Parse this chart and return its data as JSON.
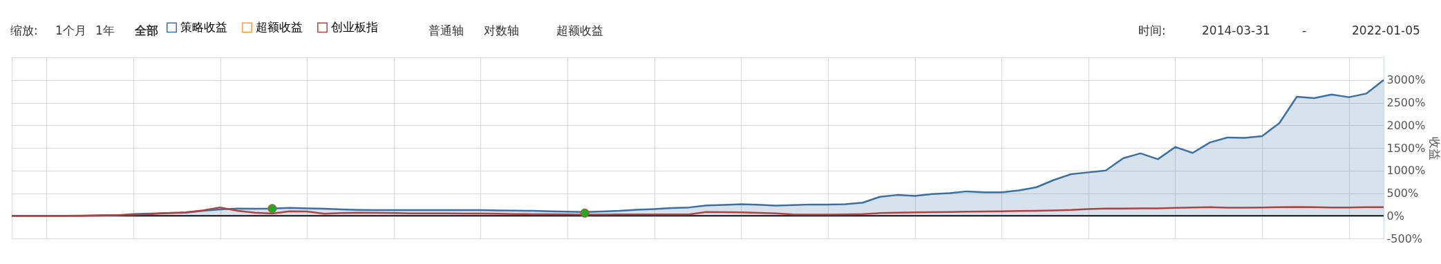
{
  "chart_data": {
    "type": "line",
    "categories": [
      null,
      null,
      null,
      null,
      null,
      null,
      null,
      null,
      null,
      null,
      null,
      null,
      null,
      null,
      null,
      null,
      null,
      null,
      null,
      null,
      null,
      null,
      null,
      null,
      null,
      null,
      null,
      null,
      null,
      null,
      null,
      null,
      null,
      null,
      null,
      null,
      null,
      null,
      null,
      null,
      null,
      null,
      null,
      null,
      null,
      null,
      null,
      null,
      null,
      null,
      null,
      null,
      null,
      null,
      null,
      null,
      null,
      null,
      null,
      null,
      null,
      null,
      null,
      null,
      null,
      null,
      null,
      null,
      null,
      null,
      null,
      null,
      null,
      null,
      null,
      null,
      null,
      null,
      null,
      null
    ],
    "series": [
      {
        "name": "策略收益",
        "type": "area",
        "color": "#3a6fa5",
        "values": [
          0,
          0,
          0,
          0,
          0,
          5,
          10,
          40,
          50,
          60,
          70,
          110,
          140,
          160,
          155,
          160,
          175,
          165,
          155,
          140,
          130,
          125,
          125,
          125,
          125,
          125,
          125,
          125,
          120,
          115,
          110,
          100,
          90,
          85,
          95,
          110,
          135,
          150,
          170,
          185,
          230,
          240,
          255,
          245,
          225,
          235,
          250,
          250,
          255,
          290,
          420,
          460,
          440,
          480,
          500,
          540,
          520,
          520,
          560,
          630,
          790,
          920,
          960,
          1000,
          1270,
          1380,
          1250,
          1520,
          1390,
          1620,
          1730,
          1720,
          1760,
          2050,
          2630,
          2600,
          2680,
          2620,
          2700,
          3000
        ]
      },
      {
        "name": "超额收益",
        "color": "#f79c45",
        "values": [
          null,
          null,
          null,
          null,
          null,
          null,
          null,
          null,
          null,
          null,
          null,
          null,
          null,
          null,
          null,
          null,
          null,
          null,
          null,
          null,
          null,
          null,
          null,
          null,
          null,
          null,
          null,
          null,
          null,
          null,
          null,
          null,
          null,
          null,
          null,
          null,
          null,
          null,
          null,
          null,
          null,
          null,
          null,
          null,
          null,
          null,
          null,
          null,
          null,
          null,
          null,
          null,
          null,
          null,
          null,
          null,
          null,
          null,
          null,
          null,
          null,
          null,
          null,
          null,
          null,
          null,
          null,
          null,
          null,
          null,
          null,
          null,
          null,
          null,
          null,
          null,
          null,
          null,
          null,
          null
        ]
      },
      {
        "name": "创业板指",
        "color": "#b0413e",
        "values": [
          0,
          0,
          0,
          0,
          5,
          10,
          15,
          20,
          40,
          60,
          75,
          120,
          185,
          110,
          70,
          50,
          100,
          95,
          45,
          60,
          70,
          65,
          60,
          55,
          55,
          55,
          50,
          50,
          45,
          40,
          35,
          35,
          30,
          25,
          25,
          30,
          30,
          30,
          30,
          30,
          85,
          80,
          75,
          65,
          55,
          30,
          25,
          25,
          30,
          40,
          60,
          70,
          75,
          80,
          85,
          90,
          95,
          100,
          105,
          110,
          120,
          130,
          150,
          160,
          160,
          165,
          165,
          175,
          185,
          190,
          180,
          180,
          185,
          190,
          195,
          190,
          185,
          185,
          190,
          190
        ]
      },
      {
        "type": "scatter",
        "color": "#22aa22",
        "values": [
          null,
          null,
          null,
          null,
          null,
          null,
          null,
          null,
          null,
          null,
          null,
          null,
          null,
          null,
          null,
          160,
          null,
          null,
          null,
          null,
          null,
          null,
          null,
          null,
          null,
          null,
          null,
          null,
          null,
          null,
          null,
          null,
          null,
          60,
          null,
          null,
          null,
          null,
          null,
          null,
          null,
          null,
          null,
          null,
          null,
          null,
          null,
          null,
          null,
          null,
          null,
          null,
          null,
          null,
          null,
          null,
          null,
          null,
          null,
          null,
          null,
          null,
          null,
          null,
          null,
          null,
          null,
          null,
          null,
          null,
          null,
          null,
          null,
          null,
          null,
          null,
          null,
          null,
          null,
          null
        ]
      }
    ],
    "ylabel": "收益",
    "ylim": [
      -500,
      3500
    ],
    "yticks": [
      {
        "value": -500,
        "label": "-500%"
      },
      {
        "value": 0,
        "label": "0%"
      },
      {
        "value": 500,
        "label": "500%"
      },
      {
        "value": 1000,
        "label": "1000%"
      },
      {
        "value": 1500,
        "label": "1500%"
      },
      {
        "value": 2000,
        "label": "2000%"
      },
      {
        "value": 2500,
        "label": "2500%"
      },
      {
        "value": 3000,
        "label": "3000%"
      },
      {
        "value": 3500,
        "label": null
      }
    ],
    "ref_lines": [
      {
        "axis": "y",
        "value": 0,
        "color": "#000000"
      }
    ],
    "annotations": [
      "缩放:",
      "1个月",
      "1年",
      "全部",
      "普通轴",
      "对数轴",
      "超额收益",
      "时间:",
      "2014-03-31",
      "-",
      "2022-01-05"
    ],
    "grid": true,
    "legend": "top left",
    "tick_labels": "y"
  }
}
